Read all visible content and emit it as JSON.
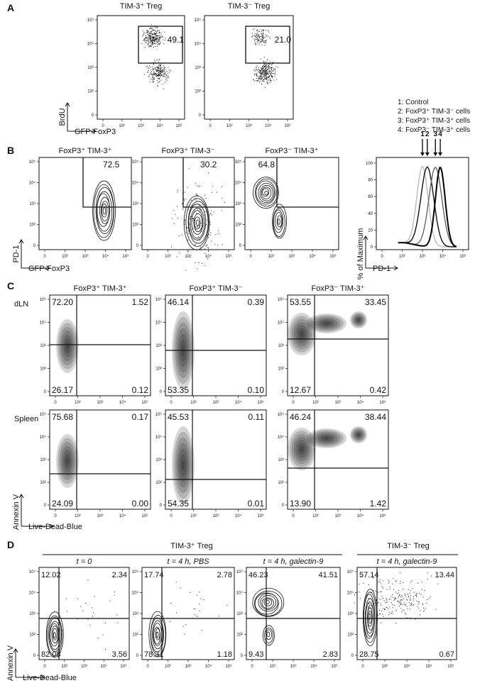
{
  "panels": {
    "A": {
      "label": "A",
      "titles": [
        "TIM-3⁺ Treg",
        "TIM-3⁻ Treg"
      ],
      "gate_values": [
        "49.1",
        "21.0"
      ],
      "x_axis": "GFP-FoxP3",
      "y_axis": "BrdU"
    },
    "B": {
      "label": "B",
      "titles": [
        "FoxP3⁺ TIM-3⁺",
        "FoxP3⁺ TIM-3⁻",
        "FoxP3⁻ TIM-3⁺"
      ],
      "gate_values": [
        "72.5",
        "30.2",
        "64.8"
      ],
      "x_axis": "GFP-FoxP3",
      "y_axis": "PD-1",
      "histogram": {
        "legend": [
          "1: Control",
          "2: FoxP3⁺ TIM-3⁻ cells",
          "3: FoxP3⁺ TIM-3⁺ cells",
          "4: FoxP3⁻ TIM-3⁺ cells"
        ],
        "arrow_labels": [
          "1",
          "2",
          "3",
          "4"
        ],
        "x_axis": "PD-1",
        "y_axis": "% of Maximum",
        "y_ticks": [
          "0",
          "20",
          "40",
          "60",
          "80",
          "100"
        ]
      }
    },
    "C": {
      "label": "C",
      "titles": [
        "FoxP3⁺ TIM-3⁺",
        "FoxP3⁺ TIM-3⁻",
        "FoxP3⁻ TIM-3⁺"
      ],
      "rows": [
        "dLN",
        "Spleen"
      ],
      "x_axis": "Live-Dead-Blue",
      "y_axis": "Annexin V"
    },
    "D": {
      "label": "D",
      "group_left": "TIM-3⁺ Treg",
      "group_right": "TIM-3⁻ Treg",
      "titles": [
        "t = 0",
        "t = 4 h, PBS",
        "t = 4 h, galectin-9",
        "t = 4 h, galectin-9"
      ],
      "x_axis": "Live-Dead-Blue",
      "y_axis": "Annexin V"
    }
  },
  "log_ticks": {
    "y": [
      "10⁵",
      "10⁴",
      "10³",
      "10²",
      "0"
    ],
    "x": [
      "0",
      "10²",
      "10³",
      "10⁴",
      "10⁵"
    ]
  },
  "chart_data": [
    {
      "type": "scatter",
      "panel": "A",
      "xlabel": "GFP-FoxP3",
      "ylabel": "BrdU",
      "plots": [
        {
          "title": "TIM-3⁺ Treg",
          "gate_percent": 49.1
        },
        {
          "title": "TIM-3⁻ Treg",
          "gate_percent": 21.0
        }
      ]
    },
    {
      "type": "scatter",
      "panel": "B",
      "xlabel": "GFP-FoxP3",
      "ylabel": "PD-1",
      "plots": [
        {
          "title": "FoxP3⁺ TIM-3⁺",
          "gate_percent": 72.5
        },
        {
          "title": "FoxP3⁺ TIM-3⁻",
          "gate_percent": 30.2
        },
        {
          "title": "FoxP3⁻ TIM-3⁺",
          "gate_percent": 64.8
        }
      ]
    },
    {
      "type": "line",
      "panel": "B-histogram",
      "xlabel": "PD-1",
      "ylabel": "% of Maximum",
      "ylim": [
        0,
        100
      ],
      "series": [
        {
          "name": "1: Control",
          "color": "#bbbbbb",
          "peak_log10": 2.5
        },
        {
          "name": "2: FoxP3⁺ TIM-3⁻ cells",
          "color": "#111111",
          "peak_log10": 2.8
        },
        {
          "name": "3: FoxP3⁺ TIM-3⁺ cells",
          "color": "#666666",
          "peak_log10": 3.3
        },
        {
          "name": "4: FoxP3⁻ TIM-3⁺ cells",
          "color": "#000000",
          "peak_log10": 3.6
        }
      ]
    },
    {
      "type": "scatter",
      "panel": "C",
      "xlabel": "Live-Dead-Blue",
      "ylabel": "Annexin V",
      "quadrant_order": [
        "top-left",
        "top-right",
        "bottom-left",
        "bottom-right"
      ],
      "rows": [
        {
          "row": "dLN",
          "plots": [
            {
              "title": "FoxP3⁺ TIM-3⁺",
              "quadrants": [
                72.2,
                1.52,
                26.17,
                0.12
              ]
            },
            {
              "title": "FoxP3⁺ TIM-3⁻",
              "quadrants": [
                46.14,
                0.39,
                53.35,
                0.1
              ]
            },
            {
              "title": "FoxP3⁻ TIM-3⁺",
              "quadrants": [
                53.55,
                33.45,
                12.67,
                0.42
              ]
            }
          ]
        },
        {
          "row": "Spleen",
          "plots": [
            {
              "title": "FoxP3⁺ TIM-3⁺",
              "quadrants": [
                75.68,
                0.17,
                24.09,
                0.0
              ]
            },
            {
              "title": "FoxP3⁺ TIM-3⁻",
              "quadrants": [
                45.53,
                0.11,
                54.35,
                0.01
              ]
            },
            {
              "title": "FoxP3⁻ TIM-3⁺",
              "quadrants": [
                46.24,
                38.44,
                13.9,
                1.42
              ]
            }
          ]
        }
      ]
    },
    {
      "type": "scatter",
      "panel": "D",
      "xlabel": "Live-Dead-Blue",
      "ylabel": "Annexin V",
      "quadrant_order": [
        "top-left",
        "top-right",
        "bottom-left",
        "bottom-right"
      ],
      "plots": [
        {
          "group": "TIM-3⁺ Treg",
          "title": "t = 0",
          "quadrants": [
            12.02,
            2.34,
            82.08,
            3.56
          ]
        },
        {
          "group": "TIM-3⁺ Treg",
          "title": "t = 4 h, PBS",
          "quadrants": [
            17.74,
            2.78,
            78.31,
            1.18
          ]
        },
        {
          "group": "TIM-3⁺ Treg",
          "title": "t = 4 h, galectin-9",
          "quadrants": [
            46.23,
            41.51,
            9.43,
            2.83
          ]
        },
        {
          "group": "TIM-3⁻ Treg",
          "title": "t = 4 h, galectin-9",
          "quadrants": [
            57.14,
            13.44,
            28.75,
            0.67
          ]
        }
      ]
    }
  ]
}
